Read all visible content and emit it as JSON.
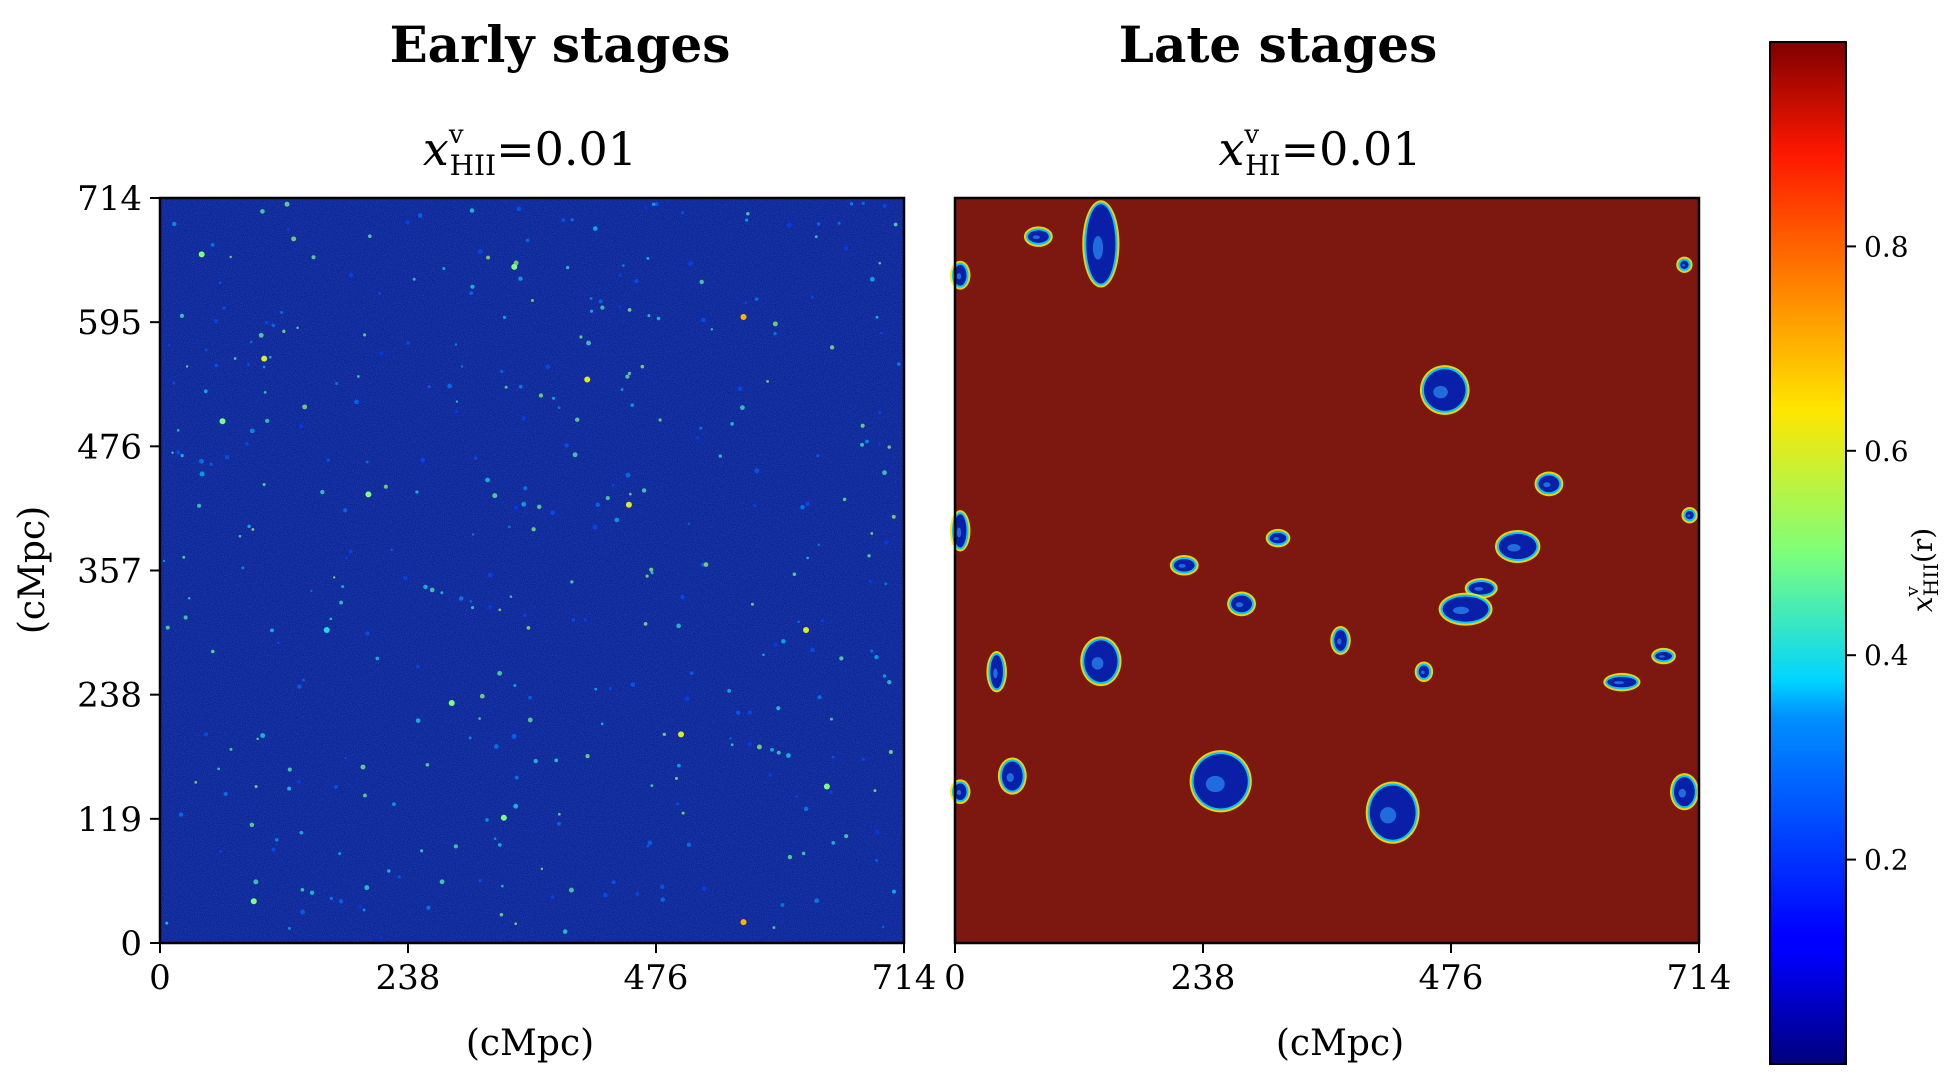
{
  "chart_data": [
    {
      "type": "heatmap",
      "title": "Early stages",
      "subtitle": {
        "var": "x",
        "sup": "v",
        "sub": "HII",
        "rest": "=0.01"
      },
      "xlabel": "(cMpc)",
      "ylabel": "(cMpc)",
      "xlim": [
        0,
        714
      ],
      "ylim": [
        0,
        714
      ],
      "xticks": [
        "0",
        "238",
        "476",
        "714"
      ],
      "yticks": [
        "0",
        "119",
        "238",
        "357",
        "476",
        "595",
        "714"
      ],
      "background_value": 0.0,
      "description_values": "mostly neutral field (x≈0) with sparse small ionized spots",
      "spots": [
        [
          100,
          560,
          0.6
        ],
        [
          340,
          648,
          0.5
        ],
        [
          560,
          600,
          0.7
        ],
        [
          410,
          540,
          0.6
        ],
        [
          200,
          430,
          0.5
        ],
        [
          450,
          420,
          0.6
        ],
        [
          60,
          500,
          0.5
        ],
        [
          620,
          300,
          0.6
        ],
        [
          280,
          230,
          0.5
        ],
        [
          500,
          200,
          0.6
        ],
        [
          90,
          40,
          0.5
        ],
        [
          560,
          20,
          0.7
        ],
        [
          160,
          300,
          0.4
        ],
        [
          330,
          120,
          0.5
        ],
        [
          640,
          150,
          0.5
        ],
        [
          40,
          660,
          0.5
        ]
      ]
    },
    {
      "type": "heatmap",
      "title": "Late stages",
      "subtitle": {
        "var": "x",
        "sup": "v",
        "sub": "HI",
        "rest": "=0.01"
      },
      "xlabel": "(cMpc)",
      "ylabel": "",
      "xlim": [
        0,
        714
      ],
      "ylim": [
        0,
        714
      ],
      "xticks": [
        "0",
        "238",
        "476",
        "714"
      ],
      "yticks": [],
      "background_value": 1.0,
      "description_values": "mostly ionized field (x≈1) with isolated neutral islands",
      "islands": [
        [
          140,
          670,
          14,
          38,
          "v"
        ],
        [
          80,
          677,
          10,
          6,
          "h"
        ],
        [
          5,
          640,
          6,
          10,
          "v"
        ],
        [
          470,
          530,
          20,
          20,
          "c"
        ],
        [
          570,
          440,
          10,
          8,
          "c"
        ],
        [
          540,
          380,
          18,
          12,
          "d"
        ],
        [
          5,
          395,
          6,
          16,
          "v"
        ],
        [
          310,
          388,
          8,
          5,
          "c"
        ],
        [
          220,
          362,
          10,
          6,
          "c"
        ],
        [
          275,
          325,
          10,
          8,
          "c"
        ],
        [
          370,
          290,
          6,
          10,
          "v"
        ],
        [
          505,
          340,
          12,
          6,
          "h"
        ],
        [
          490,
          320,
          22,
          12,
          "c"
        ],
        [
          140,
          270,
          16,
          20,
          "c"
        ],
        [
          40,
          260,
          6,
          16,
          "v"
        ],
        [
          450,
          260,
          5,
          6,
          "c"
        ],
        [
          640,
          250,
          14,
          5,
          "h"
        ],
        [
          680,
          275,
          8,
          4,
          "h"
        ],
        [
          55,
          160,
          10,
          14,
          "v"
        ],
        [
          255,
          155,
          26,
          26,
          "c"
        ],
        [
          420,
          125,
          22,
          26,
          "c"
        ],
        [
          5,
          145,
          6,
          8,
          "c"
        ],
        [
          700,
          145,
          10,
          14,
          "v"
        ],
        [
          700,
          650,
          4,
          4,
          "c"
        ],
        [
          705,
          410,
          4,
          4,
          "c"
        ]
      ]
    }
  ],
  "colorbar": {
    "label": {
      "var": "x",
      "sup": "v",
      "sub": "HII",
      "rest": "(r)"
    },
    "ticks": [
      "0.2",
      "0.4",
      "0.6",
      "0.8"
    ],
    "tick_values": [
      0.2,
      0.4,
      0.6,
      0.8
    ],
    "range": [
      0,
      1
    ],
    "colormap": "jet"
  }
}
